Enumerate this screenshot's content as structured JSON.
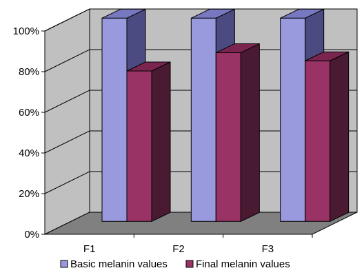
{
  "chart_data": {
    "type": "bar",
    "categories": [
      "F1",
      "F2",
      "F3"
    ],
    "series": [
      {
        "name": "Basic melanin values",
        "values": [
          100,
          100,
          100
        ],
        "color": "#9999dd",
        "side_color": "#4b4b82",
        "top_color": "#7878c0"
      },
      {
        "name": "Final melanin values",
        "values": [
          74,
          83,
          79
        ],
        "color": "#993366",
        "side_color": "#4a1a33",
        "top_color": "#7a2550"
      }
    ],
    "yticks": [
      "0%",
      "20%",
      "40%",
      "60%",
      "80%",
      "100%"
    ],
    "ylim": [
      0,
      100
    ],
    "grid": true,
    "legend": "bottom",
    "wall_color": "#c0c0c0",
    "floor_color": "#808080"
  }
}
